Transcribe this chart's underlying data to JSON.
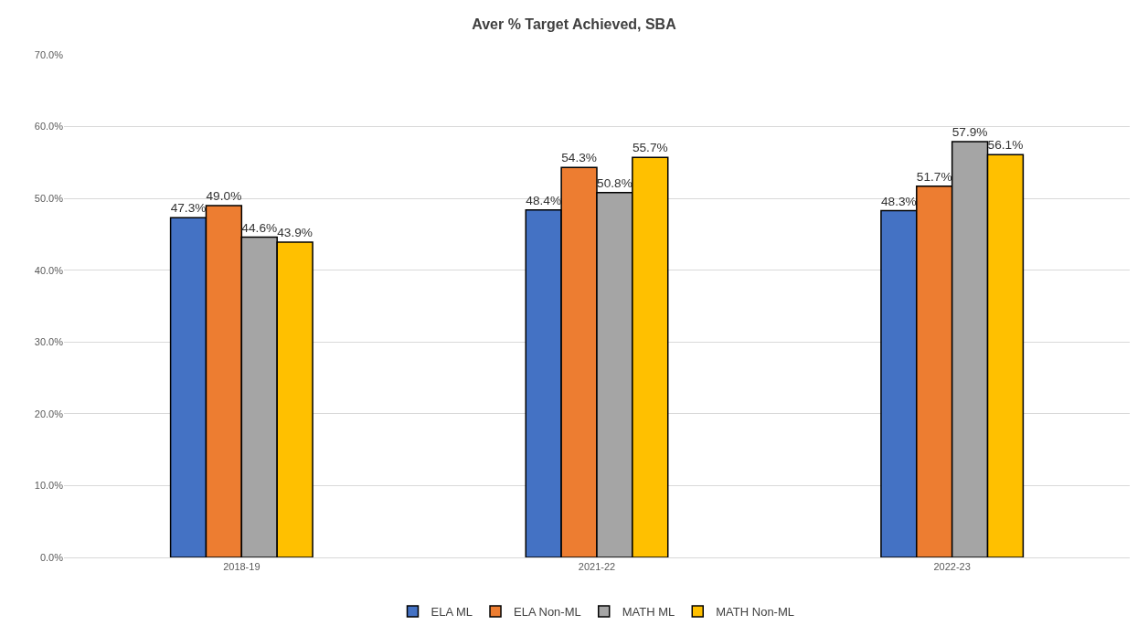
{
  "chart_data": {
    "type": "bar",
    "title": "Aver % Target Achieved, SBA",
    "categories": [
      "2018-19",
      "2021-22",
      "2022-23"
    ],
    "series": [
      {
        "name": "ELA ML",
        "color": "#4472c4",
        "values": [
          47.3,
          48.4,
          48.3
        ]
      },
      {
        "name": "ELA Non-ML",
        "color": "#ed7d31",
        "values": [
          49.0,
          54.3,
          51.7
        ]
      },
      {
        "name": "MATH ML",
        "color": "#a5a5a5",
        "values": [
          44.6,
          50.8,
          57.9
        ]
      },
      {
        "name": "MATH Non-ML",
        "color": "#ffc000",
        "values": [
          43.9,
          55.7,
          56.1
        ]
      }
    ],
    "ylim": [
      0,
      70
    ],
    "yticks": [
      {
        "value": 0,
        "label": "0.0%"
      },
      {
        "value": 10,
        "label": "10.0%"
      },
      {
        "value": 20,
        "label": "20.0%"
      },
      {
        "value": 30,
        "label": "30.0%"
      },
      {
        "value": 40,
        "label": "40.0%"
      },
      {
        "value": 50,
        "label": "50.0%"
      },
      {
        "value": 60,
        "label": "60.0%"
      },
      {
        "value": 70,
        "label": "70.0%"
      }
    ],
    "value_labels": [
      [
        "47.3%",
        "48.4%",
        "48.3%"
      ],
      [
        "49.0%",
        "54.3%",
        "51.7%"
      ],
      [
        "44.6%",
        "50.8%",
        "57.9%"
      ],
      [
        "43.9%",
        "55.7%",
        "56.1%"
      ]
    ],
    "grid": "y",
    "legend": "bottom"
  }
}
